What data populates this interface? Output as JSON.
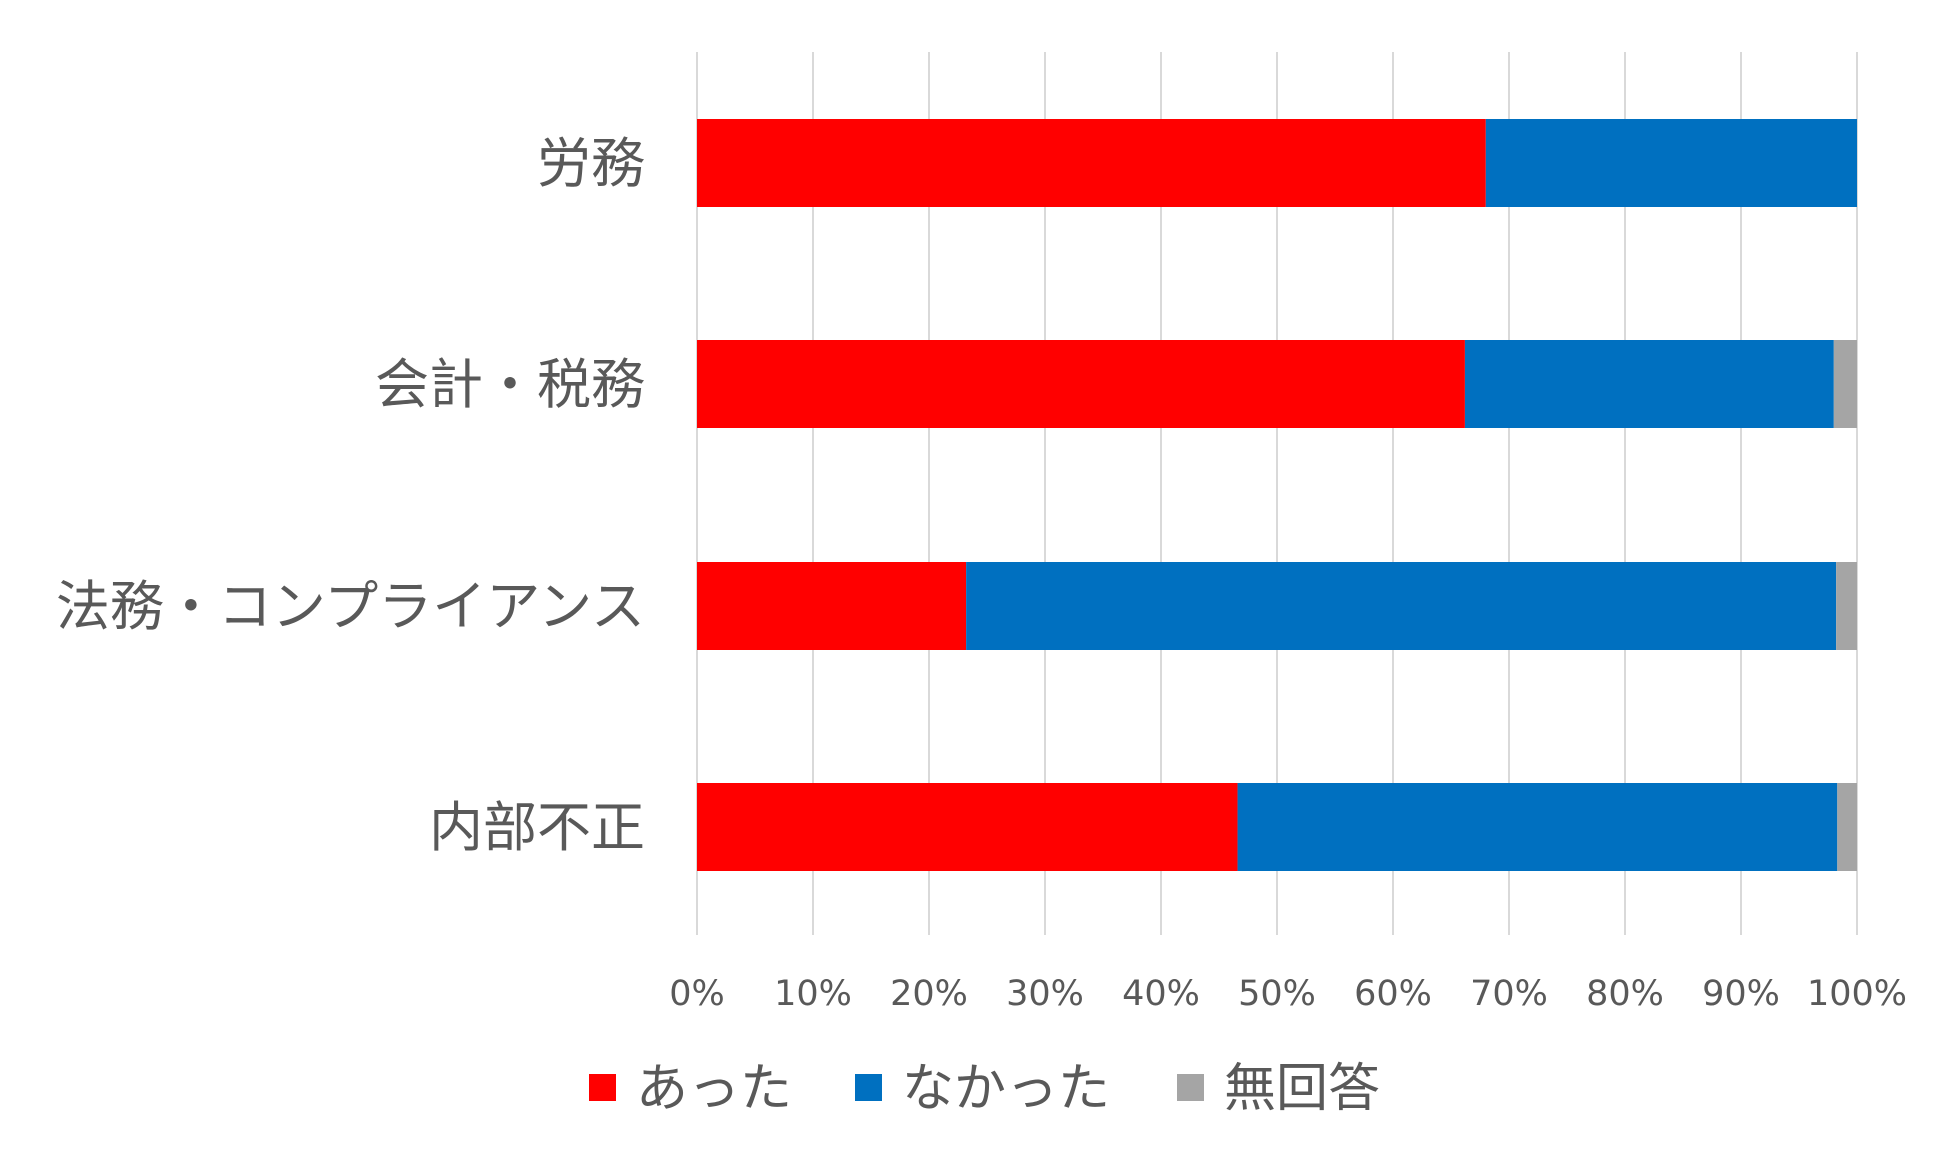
{
  "chart_data": {
    "type": "bar",
    "orientation": "horizontal",
    "stacked": "100%",
    "categories": [
      "労務",
      "会計・税務",
      "法務・コンプライアンス",
      "内部不正"
    ],
    "series": [
      {
        "name": "あった",
        "color": "#ff0000",
        "values": [
          68.0,
          66.2,
          23.2,
          46.6
        ]
      },
      {
        "name": "なかった",
        "color": "#0070c0",
        "values": [
          32.0,
          31.8,
          75.0,
          51.7
        ]
      },
      {
        "name": "無回答",
        "color": "#a5a5a5",
        "values": [
          0.0,
          2.0,
          1.8,
          1.7
        ]
      }
    ],
    "xlim": [
      0,
      100
    ],
    "xticks": [
      "0%",
      "10%",
      "20%",
      "30%",
      "40%",
      "50%",
      "60%",
      "70%",
      "80%",
      "90%",
      "100%"
    ],
    "grid": true,
    "legend_position": "bottom"
  }
}
